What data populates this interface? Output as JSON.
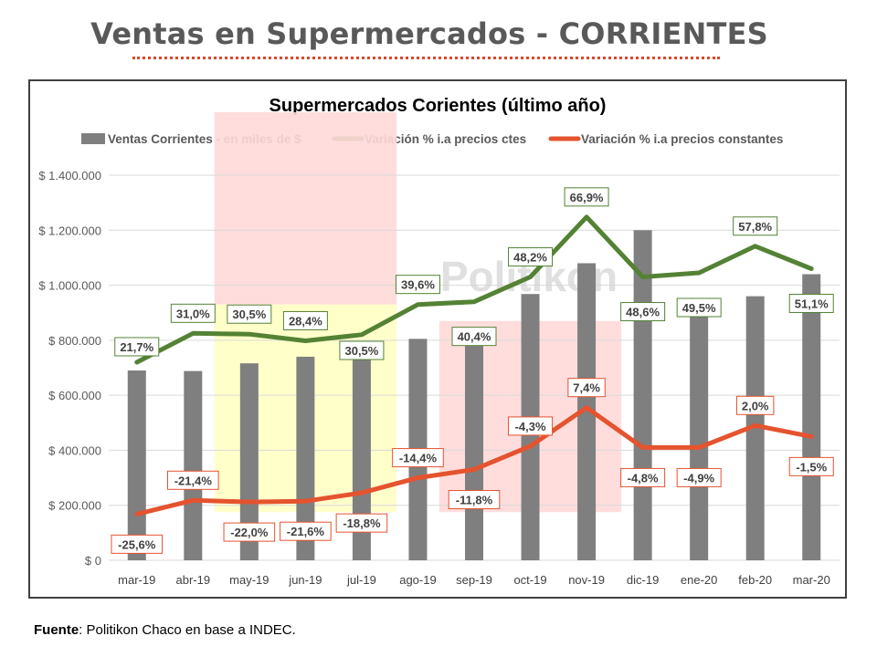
{
  "page": {
    "title": "Ventas en Supermercados - CORRIENTES",
    "footer_label": "Fuente",
    "footer_text": ": Politikon Chaco en base a INDEC.",
    "watermark": "Politikon"
  },
  "colors": {
    "bars": "#7f7f7f",
    "line_ctes": "#548235",
    "line_constantes": "#e5532f",
    "highlight_red": "#ffd9d9",
    "highlight_yellow": "#ffffc4"
  },
  "chart_data": {
    "type": "bar",
    "title": "Supermercados Corientes (último año)",
    "categories": [
      "mar-19",
      "abr-19",
      "may-19",
      "jun-19",
      "jul-19",
      "ago-19",
      "sep-19",
      "oct-19",
      "nov-19",
      "dic-19",
      "ene-20",
      "feb-20",
      "mar-20"
    ],
    "ylim": [
      0,
      1400000
    ],
    "yticks": [
      0,
      200000,
      400000,
      600000,
      800000,
      1000000,
      1200000,
      1400000
    ],
    "ytick_labels": [
      "$ 0",
      "$ 200.000",
      "$ 400.000",
      "$ 600.000",
      "$ 800.000",
      "$ 1.000.000",
      "$ 1.200.000",
      "$ 1.400.000"
    ],
    "grid": true,
    "legend_position": "top",
    "series": [
      {
        "name": "Ventas Corrientes - en miles de $",
        "type": "bar",
        "values": [
          690000,
          688000,
          716000,
          740000,
          740000,
          805000,
          830000,
          968000,
          1080000,
          1200000,
          950000,
          960000,
          1040000
        ]
      },
      {
        "name": "Variación % i.a precios ctes",
        "type": "line",
        "values": [
          720000,
          825000,
          822000,
          798000,
          820000,
          930000,
          940000,
          1030000,
          1248000,
          1030000,
          1045000,
          1142000,
          1060000
        ],
        "labels": [
          "21,7%",
          "31,0%",
          "30,5%",
          "28,4%",
          "30,5%",
          "39,6%",
          "40,4%",
          "48,2%",
          "66,9%",
          "48,6%",
          "49,5%",
          "57,8%",
          "51,1%"
        ]
      },
      {
        "name": "Variación % i.a precios constantes",
        "type": "line",
        "values": [
          168000,
          218000,
          212000,
          215000,
          245000,
          300000,
          330000,
          415000,
          555000,
          410000,
          410000,
          490000,
          450000
        ],
        "labels": [
          "-25,6%",
          "-21,4%",
          "-22,0%",
          "-21,6%",
          "-18,8%",
          "-14,4%",
          "-11,8%",
          "-4,3%",
          "7,4%",
          "-4,8%",
          "-4,9%",
          "2,0%",
          "-1,5%"
        ]
      }
    ],
    "highlight_areas": [
      {
        "color": "red",
        "from_category": "may-19",
        "to_category": "jul-19",
        "y_from": 930000,
        "y_to": 1630000
      },
      {
        "color": "yellow",
        "from_category": "may-19",
        "to_category": "jul-19",
        "y_from": 175000,
        "y_to": 930000
      },
      {
        "color": "red",
        "from_category": "sep-19",
        "to_category": "nov-19",
        "y_from": 175000,
        "y_to": 870000
      }
    ]
  }
}
